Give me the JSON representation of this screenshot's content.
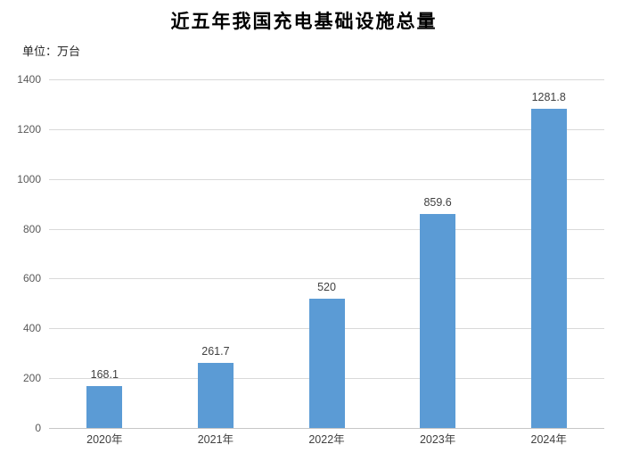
{
  "chart_data": {
    "type": "bar",
    "title": "近五年我国充电基础设施总量",
    "unit_label": "单位：万台",
    "categories": [
      "2020年",
      "2021年",
      "2022年",
      "2023年",
      "2024年"
    ],
    "values": [
      168.1,
      261.7,
      520,
      859.6,
      1281.8
    ],
    "data_labels": [
      "168.1",
      "261.7",
      "520",
      "859.6",
      "1281.8"
    ],
    "xlabel": "",
    "ylabel": "",
    "ylim": [
      0,
      1400
    ],
    "yticks": [
      0,
      200,
      400,
      600,
      800,
      1000,
      1200,
      1400
    ],
    "grid": true,
    "legend_position": "none",
    "colors": {
      "bar": "#5B9BD5",
      "gridline": "#D9D9D9",
      "axis_line": "#C6C6C6",
      "ytick_label": "#595959",
      "data_label": "#404040",
      "xtick_label": "#404040",
      "title": "#000000",
      "background": "#FFFFFF"
    }
  }
}
